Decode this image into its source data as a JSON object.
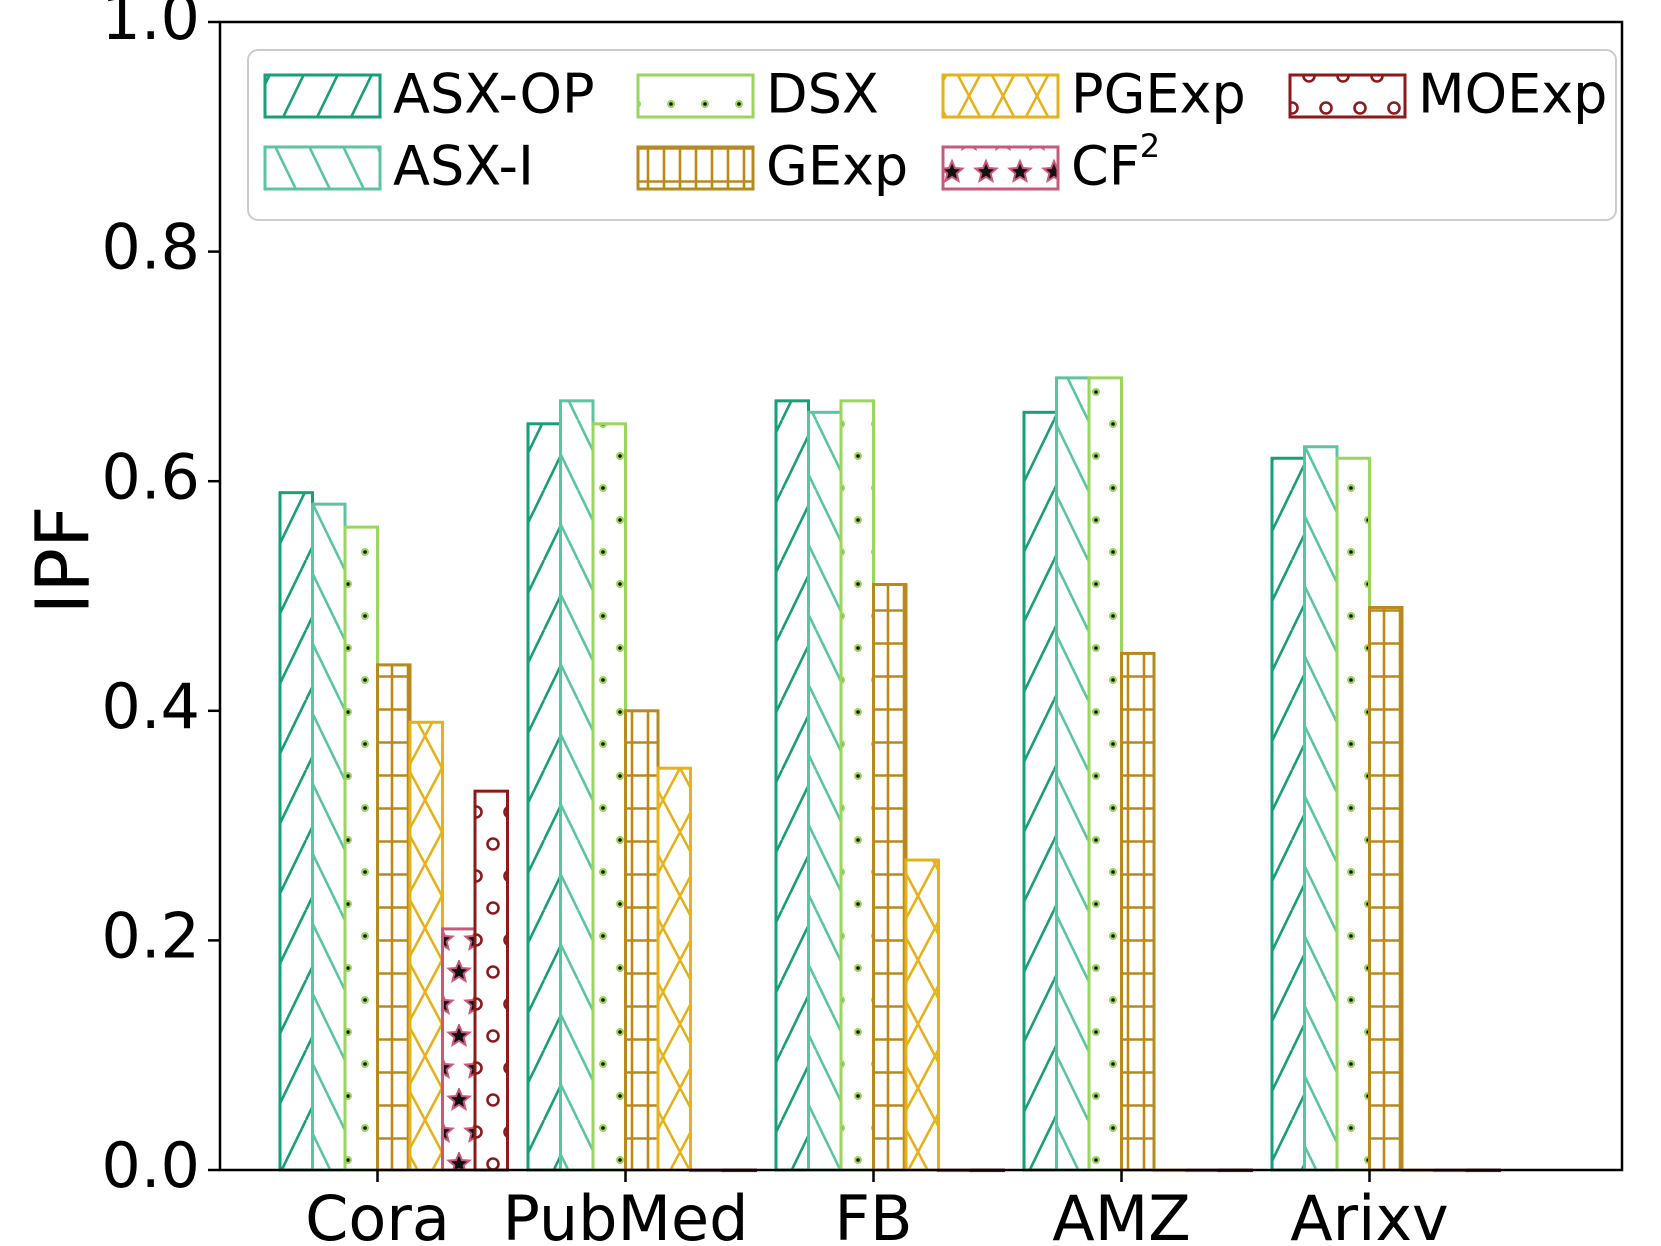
{
  "chart_data": {
    "type": "bar",
    "title": "",
    "xlabel": "",
    "ylabel": "IPF",
    "ylim": [
      0,
      1.0
    ],
    "yticks": [
      "0.0",
      "0.2",
      "0.4",
      "0.6",
      "0.8",
      "1.0"
    ],
    "grid": false,
    "legend_position": "top",
    "categories": [
      "Cora",
      "PubMed",
      "FB",
      "AMZ",
      "Arixv"
    ],
    "series": [
      {
        "name": "ASX-OP",
        "color": "#1a9e7a",
        "hatch": "diagonal-forward",
        "values": [
          0.59,
          0.65,
          0.67,
          0.66,
          0.62
        ]
      },
      {
        "name": "ASX-I",
        "color": "#5cc4a2",
        "hatch": "diagonal-back",
        "values": [
          0.58,
          0.67,
          0.66,
          0.69,
          0.63
        ]
      },
      {
        "name": "DSX",
        "color": "#9ad65e",
        "hatch": "dots",
        "values": [
          0.56,
          0.65,
          0.67,
          0.69,
          0.62
        ]
      },
      {
        "name": "GExp",
        "color": "#b8891e",
        "hatch": "grid",
        "values": [
          0.44,
          0.4,
          0.51,
          0.45,
          0.49
        ]
      },
      {
        "name": "PGExp",
        "color": "#e5b21c",
        "hatch": "cross",
        "values": [
          0.39,
          0.35,
          0.27,
          0,
          0
        ]
      },
      {
        "name": "CF",
        "name_sup": "2",
        "color": "#c9597b",
        "hatch": "stars",
        "values": [
          0.21,
          0,
          0,
          0,
          0
        ]
      },
      {
        "name": "MOExp",
        "color": "#8b1a1a",
        "hatch": "circles",
        "values": [
          0.33,
          0,
          0,
          0,
          0
        ]
      }
    ]
  }
}
